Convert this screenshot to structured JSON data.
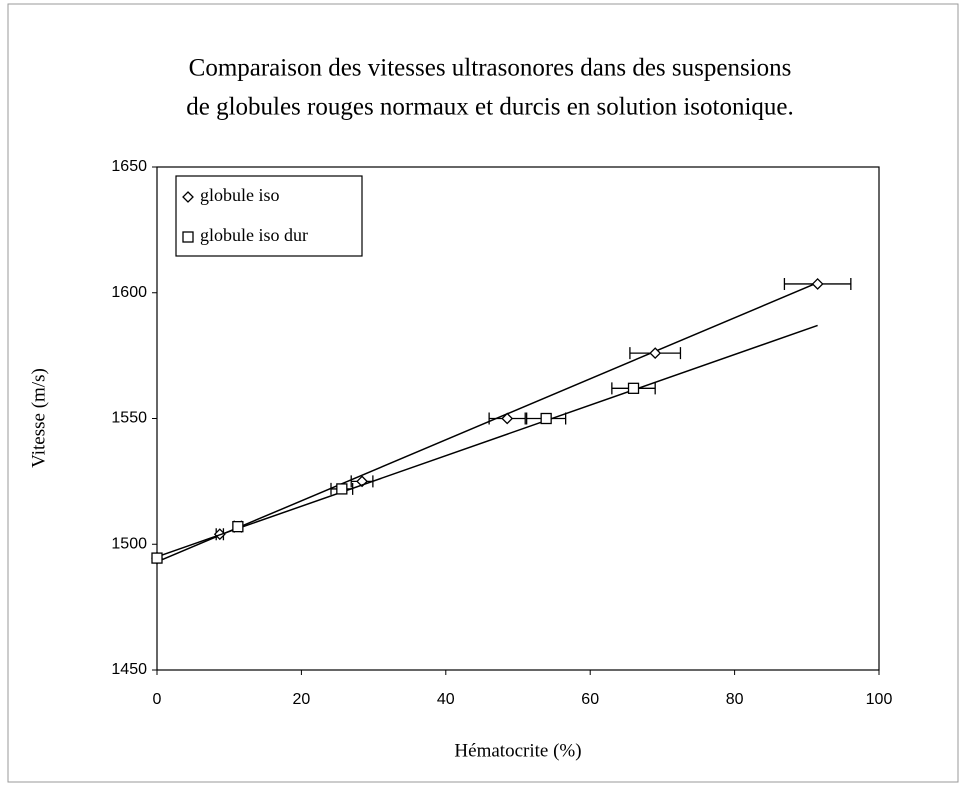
{
  "chart_data": {
    "type": "scatter",
    "title": [
      "Comparaison des vitesses ultrasonores dans des suspensions",
      "de globules rouges normaux et durcis en solution isotonique."
    ],
    "xlabel": "Hématocrite (%)",
    "ylabel": "Vitesse (m/s)",
    "xlim": [
      0,
      100
    ],
    "xticks": [
      0,
      20,
      40,
      60,
      80,
      100
    ],
    "ylim": [
      1450,
      1650
    ],
    "yticks": [
      1450,
      1500,
      1550,
      1600,
      1650
    ],
    "legend": "upper left",
    "series": [
      {
        "name": "globule iso",
        "marker": "diamond",
        "color": "#000000",
        "x": [
          0,
          8.7,
          28.4,
          48.5,
          69,
          91.5
        ],
        "values": [
          1494.5,
          1504,
          1525,
          1550,
          1576,
          1603.5
        ],
        "xerr": [
          0,
          0.5,
          1.5,
          2.5,
          3.5,
          4.6
        ],
        "trendline": {
          "x": [
            0,
            91.5
          ],
          "values": [
            1493,
            1604
          ]
        }
      },
      {
        "name": "globule iso dur",
        "marker": "square",
        "color": "#000000",
        "x": [
          0,
          11.2,
          25.6,
          53.9,
          66
        ],
        "values": [
          1494.5,
          1507,
          1522,
          1550,
          1562
        ],
        "xerr": [
          0,
          0.5,
          1.5,
          2.7,
          3
        ],
        "trendline": {
          "x": [
            0,
            91.5
          ],
          "values": [
            1495,
            1587
          ]
        }
      }
    ]
  }
}
